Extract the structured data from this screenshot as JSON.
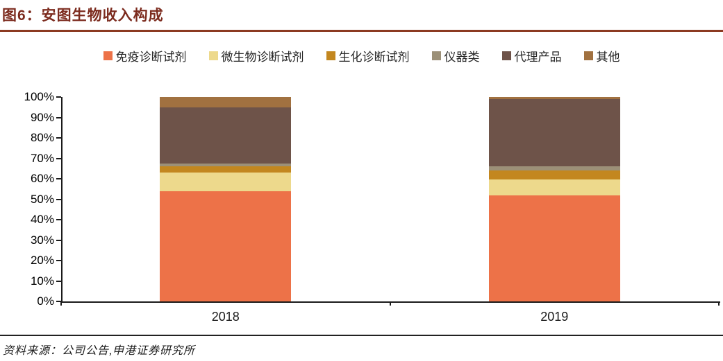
{
  "title": "图6：安图生物收入构成",
  "source_note": "资料来源：公司公告,申港证券研究所",
  "colors": {
    "title_text": "#7C2B1E",
    "title_rule": "#8C3A21",
    "axis": "#1a1a1a",
    "source_rule": "#222222"
  },
  "chart_data": {
    "type": "bar",
    "stacked": true,
    "title": "安图生物收入构成",
    "categories": [
      "2018",
      "2019"
    ],
    "series": [
      {
        "name": "免疫诊断试剂",
        "color": "#ED7248",
        "values": [
          54,
          52
        ]
      },
      {
        "name": "微生物诊断试剂",
        "color": "#EDD98C",
        "values": [
          9,
          7.5
        ]
      },
      {
        "name": "生化诊断试剂",
        "color": "#C3871F",
        "values": [
          3,
          4.5
        ]
      },
      {
        "name": "仪器类",
        "color": "#9C9078",
        "values": [
          1.5,
          2
        ]
      },
      {
        "name": "代理产品",
        "color": "#6E5349",
        "values": [
          27.5,
          33
        ]
      },
      {
        "name": "其他",
        "color": "#A17140",
        "values": [
          5,
          1
        ]
      }
    ],
    "ylim": [
      0,
      100
    ],
    "ytick_step": 10,
    "yticks": [
      "0%",
      "10%",
      "20%",
      "30%",
      "40%",
      "50%",
      "60%",
      "70%",
      "80%",
      "90%",
      "100%"
    ],
    "legend_position": "top",
    "grid": false
  }
}
